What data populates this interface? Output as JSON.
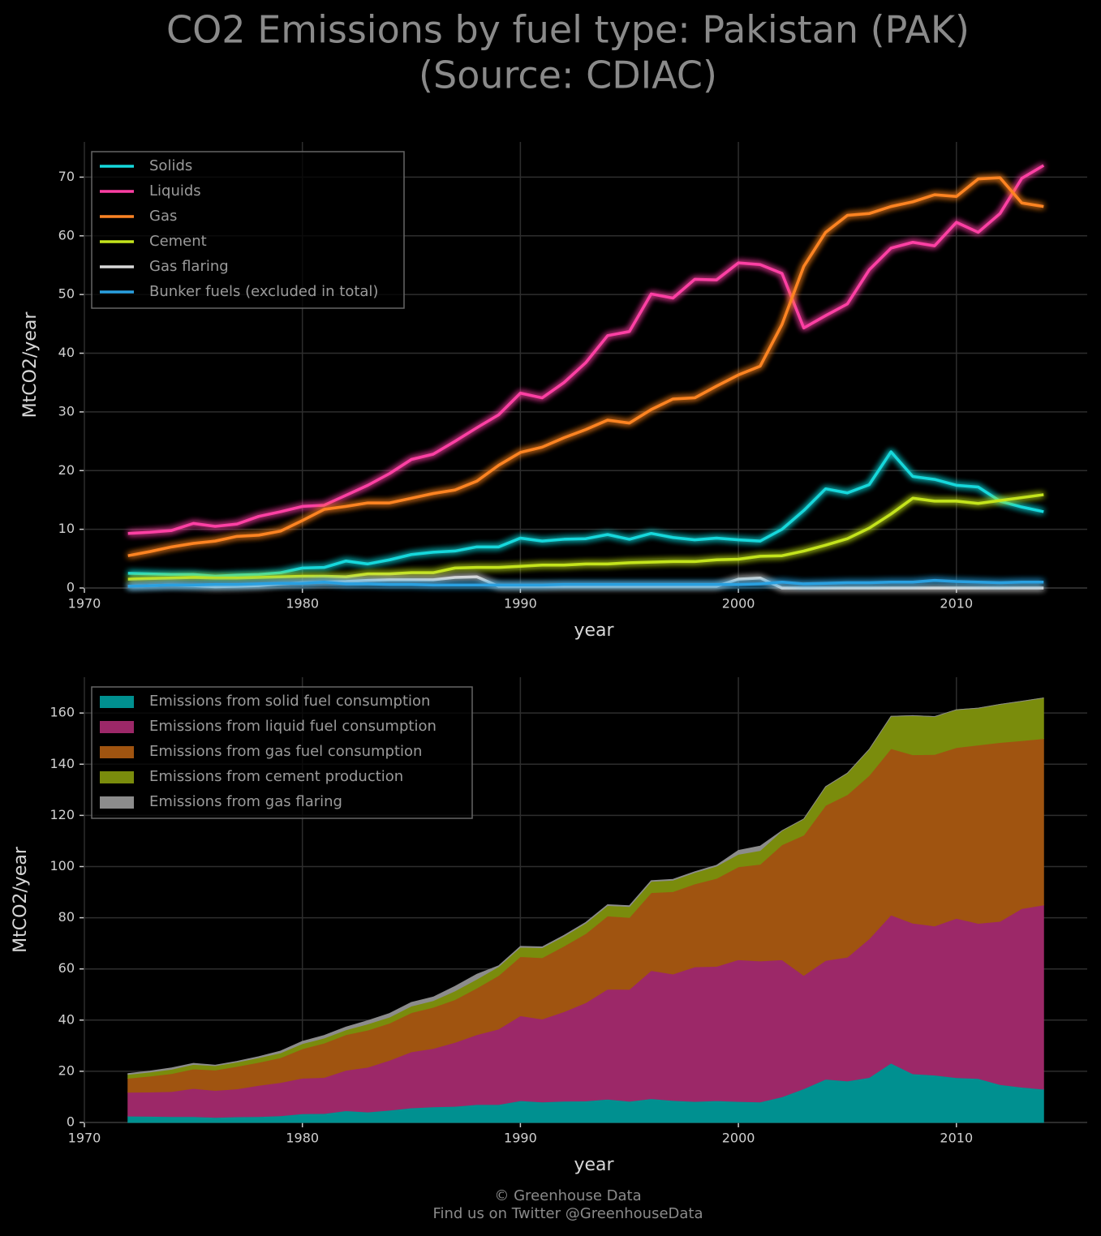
{
  "title": "CO2 Emissions by fuel type: Pakistan (PAK)",
  "subtitle": "(Source: CDIAC)",
  "footer": [
    "© Greenhouse Data",
    "Find us on Twitter @GreenhouseData"
  ],
  "chart_data": [
    {
      "type": "line",
      "xlabel": "year",
      "ylabel": "MtCO2/year",
      "xlim": [
        1970,
        2016
      ],
      "ylim": [
        0,
        76
      ],
      "xticks": [
        1970,
        1980,
        1990,
        2000,
        2010
      ],
      "yticks": [
        0,
        10,
        20,
        30,
        40,
        50,
        60,
        70
      ],
      "grid": true,
      "legend": "upper left",
      "x": [
        1972,
        1973,
        1974,
        1975,
        1976,
        1977,
        1978,
        1979,
        1980,
        1981,
        1982,
        1983,
        1984,
        1985,
        1986,
        1987,
        1988,
        1989,
        1990,
        1991,
        1992,
        1993,
        1994,
        1995,
        1996,
        1997,
        1998,
        1999,
        2000,
        2001,
        2002,
        2003,
        2004,
        2005,
        2006,
        2007,
        2008,
        2009,
        2010,
        2011,
        2012,
        2013,
        2014
      ],
      "series": [
        {
          "name": "Solids",
          "color": "#14d8dc",
          "values": [
            2.5,
            2.4,
            2.3,
            2.3,
            2.0,
            2.2,
            2.3,
            2.6,
            3.4,
            3.5,
            4.6,
            4.1,
            4.8,
            5.7,
            6.1,
            6.3,
            7.0,
            7.0,
            8.5,
            8.0,
            8.3,
            8.4,
            9.1,
            8.3,
            9.3,
            8.6,
            8.2,
            8.5,
            8.2,
            8.0,
            10.0,
            13.2,
            16.9,
            16.2,
            17.6,
            23.2,
            19.0,
            18.5,
            17.5,
            17.2,
            14.8,
            13.8,
            13.0
          ]
        },
        {
          "name": "Liquids",
          "color": "#ff3fa4",
          "values": [
            9.3,
            9.5,
            9.8,
            11.0,
            10.5,
            10.9,
            12.2,
            13.0,
            13.9,
            14.1,
            15.8,
            17.5,
            19.5,
            21.9,
            22.8,
            25.0,
            27.3,
            29.5,
            33.2,
            32.4,
            35.0,
            38.4,
            43.0,
            43.7,
            50.1,
            49.4,
            52.6,
            52.5,
            55.4,
            55.1,
            53.6,
            44.3,
            46.4,
            48.4,
            54.2,
            57.9,
            58.9,
            58.3,
            62.3,
            60.6,
            63.8,
            69.8,
            72.0
          ]
        },
        {
          "name": "Gas",
          "color": "#ff8424",
          "values": [
            5.5,
            6.2,
            7.0,
            7.6,
            8.0,
            8.8,
            9.0,
            9.7,
            11.5,
            13.4,
            13.9,
            14.5,
            14.5,
            15.3,
            16.1,
            16.7,
            18.2,
            20.9,
            23.1,
            24.0,
            25.6,
            27.0,
            28.6,
            28.1,
            30.4,
            32.2,
            32.4,
            34.4,
            36.3,
            37.8,
            44.9,
            54.8,
            60.6,
            63.5,
            63.8,
            65.0,
            65.8,
            67.0,
            66.7,
            69.7,
            69.9,
            65.6,
            65.0
          ]
        },
        {
          "name": "Cement",
          "color": "#c4e41c",
          "values": [
            1.5,
            1.6,
            1.7,
            1.8,
            1.7,
            1.7,
            1.8,
            1.9,
            2.0,
            2.0,
            1.9,
            2.4,
            2.4,
            2.6,
            2.6,
            3.4,
            3.5,
            3.5,
            3.7,
            3.9,
            3.9,
            4.1,
            4.1,
            4.3,
            4.4,
            4.5,
            4.5,
            4.8,
            4.9,
            5.4,
            5.5,
            6.3,
            7.3,
            8.4,
            10.2,
            12.6,
            15.3,
            14.8,
            14.8,
            14.4,
            14.9,
            15.4,
            15.9
          ]
        },
        {
          "name": "Gas flaring",
          "color": "#d8d8d8",
          "values": [
            0.3,
            0.4,
            0.5,
            0.4,
            0.2,
            0.3,
            0.4,
            0.7,
            0.9,
            1.0,
            1.1,
            1.3,
            1.4,
            1.4,
            1.4,
            1.8,
            1.9,
            0.3,
            0.3,
            0.3,
            0.3,
            0.3,
            0.3,
            0.3,
            0.3,
            0.3,
            0.3,
            0.3,
            1.5,
            1.7,
            0,
            0,
            0,
            0,
            0,
            0,
            0,
            0,
            0,
            0,
            0,
            0,
            0
          ]
        },
        {
          "name": "Bunker fuels (excluded in total)",
          "color": "#2aa0e0",
          "values": [
            0.3,
            0.4,
            0.5,
            0.5,
            0.6,
            0.6,
            0.7,
            0.8,
            0.8,
            1.0,
            0.7,
            0.7,
            0.6,
            0.6,
            0.5,
            0.5,
            0.5,
            0.5,
            0.5,
            0.5,
            0.6,
            0.6,
            0.6,
            0.6,
            0.6,
            0.6,
            0.6,
            0.6,
            0.6,
            0.7,
            1.0,
            0.7,
            0.8,
            0.9,
            0.9,
            1.0,
            1.0,
            1.3,
            1.1,
            1.0,
            0.9,
            1.0,
            1.0
          ]
        }
      ]
    },
    {
      "type": "area",
      "xlabel": "year",
      "ylabel": "MtCO2/year",
      "xlim": [
        1970,
        2016
      ],
      "ylim": [
        0,
        174
      ],
      "xticks": [
        1970,
        1980,
        1990,
        2000,
        2010
      ],
      "yticks": [
        0,
        20,
        40,
        60,
        80,
        100,
        120,
        140,
        160
      ],
      "grid": true,
      "legend": "upper left",
      "x": [
        1972,
        1973,
        1974,
        1975,
        1976,
        1977,
        1978,
        1979,
        1980,
        1981,
        1982,
        1983,
        1984,
        1985,
        1986,
        1987,
        1988,
        1989,
        1990,
        1991,
        1992,
        1993,
        1994,
        1995,
        1996,
        1997,
        1998,
        1999,
        2000,
        2001,
        2002,
        2003,
        2004,
        2005,
        2006,
        2007,
        2008,
        2009,
        2010,
        2011,
        2012,
        2013,
        2014
      ],
      "series": [
        {
          "name": "Emissions from solid fuel consumption",
          "color": "#009090",
          "values": [
            2.5,
            2.4,
            2.3,
            2.3,
            2.0,
            2.2,
            2.3,
            2.6,
            3.4,
            3.5,
            4.6,
            4.1,
            4.8,
            5.7,
            6.1,
            6.3,
            7.0,
            7.0,
            8.5,
            8.0,
            8.3,
            8.4,
            9.1,
            8.3,
            9.3,
            8.6,
            8.2,
            8.5,
            8.2,
            8.0,
            10.0,
            13.2,
            16.9,
            16.2,
            17.6,
            23.2,
            19.0,
            18.5,
            17.5,
            17.2,
            14.8,
            13.8,
            13.0
          ]
        },
        {
          "name": "Emissions from liquid fuel consumption",
          "color": "#9c2868",
          "values": [
            9.3,
            9.5,
            9.8,
            11.0,
            10.5,
            10.9,
            12.2,
            13.0,
            13.9,
            14.1,
            15.8,
            17.5,
            19.5,
            21.9,
            22.8,
            25.0,
            27.3,
            29.5,
            33.2,
            32.4,
            35.0,
            38.4,
            43.0,
            43.7,
            50.1,
            49.4,
            52.6,
            52.5,
            55.4,
            55.1,
            53.6,
            44.3,
            46.4,
            48.4,
            54.2,
            57.9,
            58.9,
            58.3,
            62.3,
            60.6,
            63.8,
            69.8,
            72.0
          ]
        },
        {
          "name": "Emissions from gas fuel consumption",
          "color": "#a05410",
          "values": [
            5.5,
            6.2,
            7.0,
            7.6,
            8.0,
            8.8,
            9.0,
            9.7,
            11.5,
            13.4,
            13.9,
            14.5,
            14.5,
            15.3,
            16.1,
            16.7,
            18.2,
            20.9,
            23.1,
            24.0,
            25.6,
            27.0,
            28.6,
            28.1,
            30.4,
            32.2,
            32.4,
            34.4,
            36.3,
            37.8,
            44.9,
            54.8,
            60.6,
            63.5,
            63.8,
            65.0,
            65.8,
            67.0,
            66.7,
            69.7,
            69.9,
            65.6,
            65.0
          ]
        },
        {
          "name": "Emissions from cement production",
          "color": "#7a8c0c",
          "values": [
            1.5,
            1.6,
            1.7,
            1.8,
            1.7,
            1.7,
            1.8,
            1.9,
            2.0,
            2.0,
            1.9,
            2.4,
            2.4,
            2.6,
            2.6,
            3.4,
            3.5,
            3.5,
            3.7,
            3.9,
            3.9,
            4.1,
            4.1,
            4.3,
            4.4,
            4.5,
            4.5,
            4.8,
            4.9,
            5.4,
            5.5,
            6.3,
            7.3,
            8.4,
            10.2,
            12.6,
            15.3,
            14.8,
            14.8,
            14.4,
            14.9,
            15.4,
            15.9
          ]
        },
        {
          "name": "Emissions from gas flaring",
          "color": "#8c8c8c",
          "values": [
            0.3,
            0.4,
            0.5,
            0.4,
            0.2,
            0.3,
            0.4,
            0.7,
            0.9,
            1.0,
            1.1,
            1.3,
            1.4,
            1.4,
            1.4,
            1.8,
            1.9,
            0.3,
            0.3,
            0.3,
            0.3,
            0.3,
            0.3,
            0.3,
            0.3,
            0.3,
            0.3,
            0.3,
            1.5,
            1.7,
            0,
            0,
            0,
            0,
            0,
            0,
            0,
            0,
            0,
            0,
            0,
            0,
            0
          ]
        }
      ]
    }
  ]
}
